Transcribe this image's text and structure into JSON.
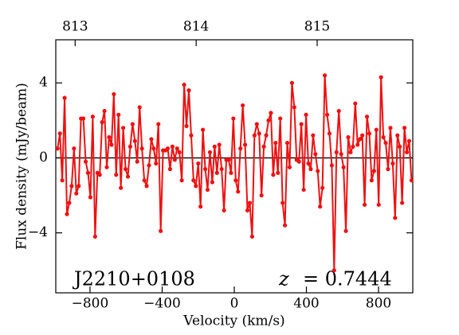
{
  "chart_data": {
    "type": "line",
    "xlabel": "Velocity (km/s)",
    "ylabel": "Flux density (mJy/beam)",
    "annotations": [
      "J2210+0108",
      "z",
      "= 0.7444"
    ],
    "x": [
      -980,
      -967,
      -954,
      -941,
      -928,
      -915,
      -902,
      -889,
      -876,
      -863,
      -850,
      -837,
      -824,
      -811,
      -798,
      -785,
      -772,
      -759,
      -746,
      -733,
      -720,
      -707,
      -694,
      -681,
      -668,
      -655,
      -642,
      -629,
      -616,
      -603,
      -590,
      -577,
      -564,
      -551,
      -538,
      -525,
      -512,
      -499,
      -486,
      -473,
      -460,
      -447,
      -434,
      -421,
      -408,
      -395,
      -382,
      -369,
      -356,
      -343,
      -330,
      -317,
      -304,
      -291,
      -278,
      -265,
      -252,
      -239,
      -226,
      -213,
      -200,
      -187,
      -174,
      -161,
      -148,
      -135,
      -122,
      -109,
      -96,
      -83,
      -70,
      -57,
      -44,
      -31,
      -18,
      -5,
      8,
      21,
      34,
      47,
      60,
      73,
      86,
      99,
      112,
      125,
      138,
      151,
      164,
      177,
      190,
      203,
      216,
      229,
      242,
      255,
      268,
      281,
      294,
      307,
      320,
      333,
      346,
      359,
      372,
      385,
      398,
      411,
      424,
      437,
      450,
      463,
      476,
      489,
      502,
      515,
      528,
      541,
      554,
      567,
      580,
      593,
      606,
      619,
      632,
      645,
      658,
      671,
      684,
      697,
      710,
      723,
      736,
      749,
      762,
      775,
      788,
      801,
      814,
      827,
      840,
      853,
      866,
      879,
      892,
      905,
      918,
      931,
      944,
      957,
      970,
      983
    ],
    "series": [
      {
        "color": "#ee1111",
        "values": [
          0.5,
          1.3,
          -1.2,
          3.2,
          -3,
          -2.4,
          -1.5,
          0.5,
          -1.9,
          -1.5,
          2.1,
          2.1,
          -0.2,
          -0.8,
          -2.1,
          2.2,
          -4.2,
          -0.8,
          -0.9,
          1.9,
          2.5,
          -0.5,
          1.1,
          0.7,
          3.4,
          -0.9,
          2.3,
          -1.6,
          1.6,
          -0.6,
          -1,
          0.6,
          1.8,
          0.9,
          -0.2,
          2.7,
          0.5,
          -1.2,
          -1.5,
          -0.4,
          1,
          0.5,
          -0.3,
          1.8,
          -3.9,
          0.4,
          0.4,
          0.5,
          -0.6,
          0.6,
          -0.1,
          0.5,
          0.3,
          -1.2,
          3.9,
          1.7,
          3.6,
          1.2,
          -1.2,
          -1.5,
          -0.3,
          -2.6,
          1.5,
          -0.6,
          -1.7,
          0.3,
          -1.3,
          0.6,
          -0.8,
          0.7,
          -0.6,
          -2.8,
          -0.1,
          -0.1,
          -0.8,
          2.1,
          -1.2,
          -1.8,
          0.5,
          2.8,
          0.7,
          -2.8,
          -2.4,
          -4.2,
          1.2,
          1.8,
          1.3,
          -2,
          0.6,
          1.2,
          2,
          2.4,
          -0.9,
          0.8,
          -0.8,
          2.1,
          -2.4,
          -3.6,
          0.8,
          -0.5,
          4,
          2.7,
          -0.1,
          -0.2,
          1.8,
          -1.7,
          2.3,
          -0.3,
          -0.6,
          1.2,
          0.2,
          -0.7,
          -2.6,
          -1.6,
          4.4,
          2.3,
          1.3,
          -0.4,
          -6,
          0.3,
          2.5,
          0.2,
          -0.5,
          -3.9,
          1.1,
          0.3,
          0.6,
          2.9,
          0.7,
          1,
          1.2,
          -2.5,
          2.2,
          1.3,
          -1.2,
          -0.7,
          1.5,
          -2.5,
          4.3,
          1.1,
          0.8,
          -0.6,
          1.6,
          -0.3,
          -3.2,
          1.2,
          0.6,
          -2.4,
          1.6,
          0.3,
          0.9,
          -1.2
        ]
      }
    ],
    "xlim": [
      -990,
      990
    ],
    "xticks": [
      {
        "value": -800,
        "label": "−800"
      },
      {
        "value": -400,
        "label": "−400"
      },
      0,
      400,
      800
    ],
    "ylim": [
      -7.2,
      6.3
    ],
    "yticks": [
      {
        "value": -4,
        "label": "−4"
      },
      0,
      4
    ],
    "x2lim": [
      812.84,
      815.79
    ],
    "x2ticks": [
      813,
      814,
      815
    ],
    "reference_line": 0,
    "line_color": "#000000"
  }
}
